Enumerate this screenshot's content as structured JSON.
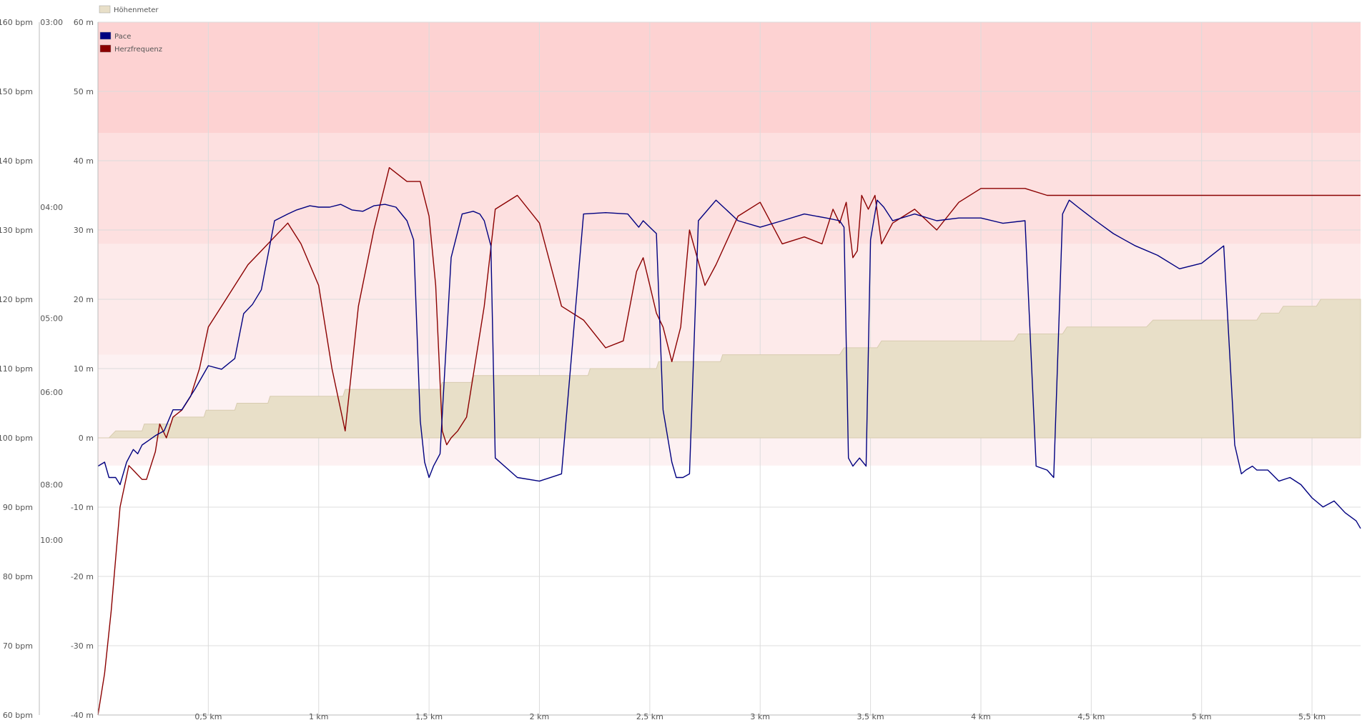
{
  "chart_data": {
    "type": "line",
    "title": "",
    "xlabel": "",
    "grid": true,
    "x_unit": "km",
    "xlim": [
      0,
      5.72
    ],
    "x_ticks": [
      {
        "value": 0.5,
        "label": "0,5 km"
      },
      {
        "value": 1,
        "label": "1 km"
      },
      {
        "value": 1.5,
        "label": "1,5 km"
      },
      {
        "value": 2,
        "label": "2 km"
      },
      {
        "value": 2.5,
        "label": "2,5 km"
      },
      {
        "value": 3,
        "label": "3 km"
      },
      {
        "value": 3.5,
        "label": "3,5 km"
      },
      {
        "value": 4,
        "label": "4 km"
      },
      {
        "value": 4.5,
        "label": "4,5 km"
      },
      {
        "value": 5,
        "label": "5 km"
      },
      {
        "value": 5.5,
        "label": "5,5 km"
      }
    ],
    "y_axes": {
      "heart_rate": {
        "unit": "bpm",
        "ylim": [
          60,
          160
        ],
        "ticks": [
          {
            "value": 160,
            "label": "160 bpm"
          },
          {
            "value": 150,
            "label": "150 bpm"
          },
          {
            "value": 140,
            "label": "140 bpm"
          },
          {
            "value": 130,
            "label": "130 bpm"
          },
          {
            "value": 120,
            "label": "120 bpm"
          },
          {
            "value": 110,
            "label": "110 bpm"
          },
          {
            "value": 100,
            "label": "100 bpm"
          },
          {
            "value": 90,
            "label": "90 bpm"
          },
          {
            "value": 80,
            "label": "80 bpm"
          },
          {
            "value": 70,
            "label": "70 bpm"
          },
          {
            "value": 60,
            "label": "60 bpm"
          }
        ]
      },
      "pace": {
        "unit": "min/km",
        "scale": "reciprocal",
        "ticks": [
          {
            "value": 3.0,
            "label": "03:00"
          },
          {
            "value": 4.0,
            "label": "04:00"
          },
          {
            "value": 5.0,
            "label": "05:00"
          },
          {
            "value": 6.0,
            "label": "06:00"
          },
          {
            "value": 8.0,
            "label": "08:00"
          },
          {
            "value": 10.0,
            "label": "10:00"
          }
        ]
      },
      "elevation": {
        "unit": "m",
        "ylim": [
          -40,
          60
        ],
        "ticks": [
          {
            "value": 60,
            "label": "60 m"
          },
          {
            "value": 50,
            "label": "50 m"
          },
          {
            "value": 40,
            "label": "40 m"
          },
          {
            "value": 30,
            "label": "30 m"
          },
          {
            "value": 20,
            "label": "20 m"
          },
          {
            "value": 10,
            "label": "10 m"
          },
          {
            "value": 0,
            "label": "0 m"
          },
          {
            "value": -10,
            "label": "-10 m"
          },
          {
            "value": -20,
            "label": "-20 m"
          },
          {
            "value": -30,
            "label": "-30 m"
          },
          {
            "value": -40,
            "label": "-40 m"
          }
        ]
      }
    },
    "heart_rate_zones": [
      {
        "from": 96,
        "to": 100,
        "color": "#fdf1f2"
      },
      {
        "from": 100,
        "to": 112,
        "color": "#fdf1f2"
      },
      {
        "from": 112,
        "to": 128,
        "color": "#fdeaea"
      },
      {
        "from": 128,
        "to": 144,
        "color": "#fde0e0"
      },
      {
        "from": 144,
        "to": 160,
        "color": "#fdd2d2"
      }
    ],
    "legend": [
      {
        "name": "Höhenmeter",
        "color": "#e8dfc8",
        "placement": "top"
      },
      {
        "name": "Pace",
        "color": "#000080",
        "placement": "top-left"
      },
      {
        "name": "Herzfrequenz",
        "color": "#8b0000",
        "placement": "top-left"
      }
    ],
    "series": [
      {
        "name": "Höhenmeter",
        "type": "area",
        "axis": "elevation",
        "color": "#e8dfc8",
        "x": [
          0,
          0.05,
          0.08,
          0.2,
          0.21,
          0.33,
          0.34,
          0.48,
          0.49,
          0.62,
          0.63,
          0.77,
          0.78,
          0.99,
          1.0,
          1.11,
          1.12,
          1.55,
          1.56,
          1.69,
          1.7,
          2.22,
          2.23,
          2.53,
          2.54,
          2.82,
          2.83,
          3.08,
          3.1,
          3.36,
          3.38,
          3.53,
          3.55,
          4.15,
          4.17,
          4.37,
          4.39,
          4.75,
          4.78,
          5.25,
          5.27,
          5.35,
          5.37,
          5.52,
          5.54,
          5.72
        ],
        "values": [
          0,
          0,
          1,
          1,
          2,
          2,
          3,
          3,
          4,
          4,
          5,
          5,
          6,
          6,
          6,
          6,
          7,
          7,
          8,
          8,
          9,
          9,
          10,
          10,
          11,
          11,
          12,
          12,
          12,
          12,
          13,
          13,
          14,
          14,
          15,
          15,
          16,
          16,
          17,
          17,
          18,
          18,
          19,
          19,
          20,
          20
        ]
      },
      {
        "name": "Herzfrequenz",
        "type": "line",
        "axis": "heart_rate",
        "color": "#8b0000",
        "x": [
          0,
          0.03,
          0.06,
          0.1,
          0.14,
          0.17,
          0.2,
          0.22,
          0.26,
          0.28,
          0.31,
          0.34,
          0.38,
          0.42,
          0.46,
          0.5,
          0.56,
          0.62,
          0.68,
          0.74,
          0.8,
          0.86,
          0.92,
          1.0,
          1.06,
          1.12,
          1.18,
          1.25,
          1.32,
          1.4,
          1.46,
          1.5,
          1.53,
          1.56,
          1.58,
          1.6,
          1.63,
          1.67,
          1.7,
          1.75,
          1.8,
          1.9,
          2.0,
          2.1,
          2.2,
          2.3,
          2.38,
          2.44,
          2.47,
          2.5,
          2.53,
          2.56,
          2.6,
          2.64,
          2.68,
          2.75,
          2.8,
          2.9,
          3.0,
          3.1,
          3.2,
          3.28,
          3.33,
          3.36,
          3.39,
          3.42,
          3.44,
          3.46,
          3.49,
          3.52,
          3.55,
          3.6,
          3.7,
          3.8,
          3.9,
          4.0,
          4.1,
          4.2,
          4.3,
          5.72
        ],
        "values": [
          60,
          66,
          75,
          90,
          96,
          95,
          94,
          94,
          98,
          102,
          100,
          103,
          104,
          106,
          110,
          116,
          119,
          122,
          125,
          127,
          129,
          131,
          128,
          122,
          110,
          101,
          119,
          130,
          139,
          137,
          137,
          132,
          122,
          101,
          99,
          100,
          101,
          103,
          109,
          119,
          133,
          135,
          131,
          119,
          117,
          113,
          114,
          124,
          126,
          122,
          118,
          116,
          111,
          116,
          130,
          122,
          125,
          132,
          134,
          128,
          129,
          128,
          133,
          131,
          134,
          126,
          127,
          135,
          133,
          135,
          128,
          131,
          133,
          130,
          134,
          136,
          136,
          136,
          135,
          135
        ]
      },
      {
        "name": "Pace",
        "type": "line",
        "axis": "pace",
        "color": "#000080",
        "x": [
          0,
          0.03,
          0.05,
          0.08,
          0.1,
          0.13,
          0.16,
          0.18,
          0.2,
          0.23,
          0.26,
          0.3,
          0.34,
          0.38,
          0.44,
          0.5,
          0.56,
          0.62,
          0.66,
          0.7,
          0.74,
          0.8,
          0.86,
          0.9,
          0.96,
          1.0,
          1.05,
          1.1,
          1.15,
          1.2,
          1.25,
          1.3,
          1.35,
          1.4,
          1.43,
          1.46,
          1.48,
          1.5,
          1.52,
          1.55,
          1.6,
          1.65,
          1.7,
          1.73,
          1.75,
          1.78,
          1.8,
          1.9,
          2.0,
          2.1,
          2.2,
          2.3,
          2.4,
          2.45,
          2.47,
          2.5,
          2.53,
          2.56,
          2.6,
          2.62,
          2.65,
          2.68,
          2.72,
          2.8,
          2.9,
          3.0,
          3.1,
          3.2,
          3.3,
          3.36,
          3.38,
          3.4,
          3.42,
          3.45,
          3.48,
          3.5,
          3.53,
          3.56,
          3.6,
          3.7,
          3.8,
          3.9,
          4.0,
          4.1,
          4.2,
          4.25,
          4.3,
          4.33,
          4.37,
          4.4,
          4.44,
          4.48,
          4.52,
          4.56,
          4.6,
          4.65,
          4.7,
          4.8,
          4.9,
          5.0,
          5.1,
          5.15,
          5.18,
          5.2,
          5.23,
          5.25,
          5.3,
          5.35,
          5.4,
          5.45,
          5.5,
          5.55,
          5.6,
          5.65,
          5.7,
          5.72
        ],
        "values": [
          7.5,
          7.4,
          7.8,
          7.8,
          8.0,
          7.4,
          7.1,
          7.2,
          7.0,
          6.9,
          6.8,
          6.7,
          6.3,
          6.3,
          5.95,
          5.6,
          5.65,
          5.5,
          4.95,
          4.85,
          4.7,
          4.1,
          4.05,
          4.02,
          3.99,
          4.0,
          4.0,
          3.98,
          4.02,
          4.03,
          3.99,
          3.98,
          4.0,
          4.1,
          4.25,
          6.5,
          7.4,
          7.8,
          7.5,
          7.2,
          4.4,
          4.05,
          4.03,
          4.05,
          4.1,
          4.3,
          7.3,
          7.8,
          7.9,
          7.7,
          4.05,
          4.04,
          4.05,
          4.15,
          4.1,
          4.15,
          4.2,
          6.3,
          7.4,
          7.8,
          7.8,
          7.7,
          4.1,
          3.95,
          4.1,
          4.15,
          4.1,
          4.05,
          4.08,
          4.1,
          4.15,
          7.3,
          7.5,
          7.3,
          7.5,
          4.25,
          3.95,
          4.0,
          4.1,
          4.05,
          4.1,
          4.08,
          4.08,
          4.12,
          4.1,
          7.5,
          7.6,
          7.8,
          4.05,
          3.95,
          4.0,
          4.05,
          4.1,
          4.15,
          4.2,
          4.25,
          4.3,
          4.38,
          4.5,
          4.45,
          4.3,
          7.0,
          7.7,
          7.6,
          7.5,
          7.6,
          7.6,
          7.9,
          7.8,
          8.0,
          8.4,
          8.7,
          8.5,
          8.9,
          9.2,
          9.5
        ]
      }
    ]
  }
}
